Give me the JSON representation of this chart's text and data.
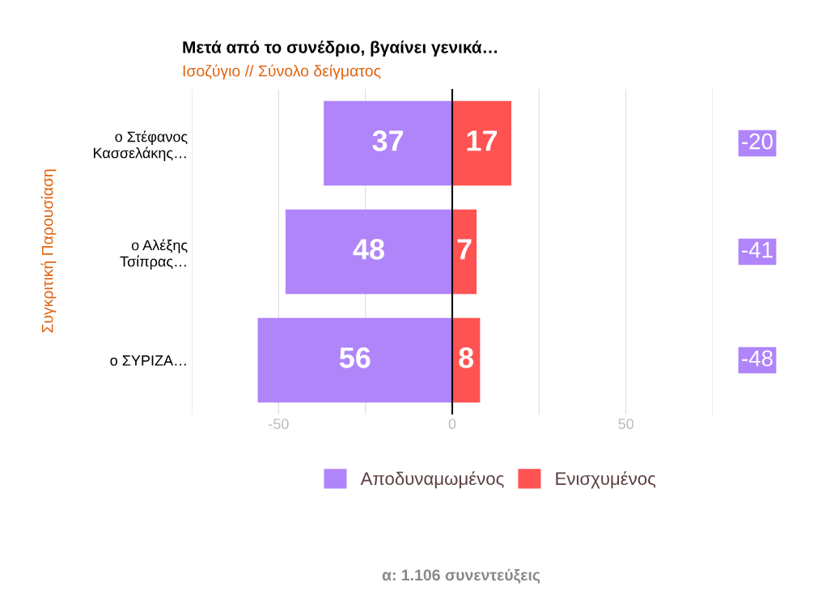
{
  "chart_data": {
    "type": "bar",
    "orientation": "horizontal",
    "title": "Μετά από το συνέδριο, βγαίνει γενικά…",
    "subtitle": "Ισοζύγιο // Σύνολο δείγματος",
    "ylabel": "Συγκριτική Παρουσίαση",
    "categories": [
      "ο Στέφανος\nΚασσελάκης…",
      "ο Αλέξης\nΤσίπρας…",
      "ο ΣΥΡΙΖΑ…"
    ],
    "series": [
      {
        "name": "Αποδυναμωμένος",
        "color": "#b085fa",
        "base": [
          -37,
          -48,
          -56
        ],
        "values": [
          37,
          48,
          56
        ],
        "value_labels": [
          "37",
          "48",
          "56"
        ]
      },
      {
        "name": "Ενισχυμένος",
        "color": "#ff5252",
        "values": [
          17,
          7,
          8
        ],
        "value_labels": [
          "17",
          "7",
          "8"
        ]
      }
    ],
    "xlim": [
      -75,
      75
    ],
    "xticks": [
      {
        "value": -75,
        "label": null
      },
      -50,
      {
        "value": -25,
        "label": null
      },
      0,
      {
        "value": 25,
        "label": null
      },
      50,
      {
        "value": 75,
        "label": null
      }
    ],
    "grid": "x",
    "legend": "bottom",
    "ref_lines": [
      {
        "axis": "x",
        "value": 0,
        "label": null,
        "color": "#000000"
      }
    ],
    "annotations": [
      "-20",
      "-41",
      "-48",
      "α: 1.106 συνεντεύξεις"
    ]
  }
}
